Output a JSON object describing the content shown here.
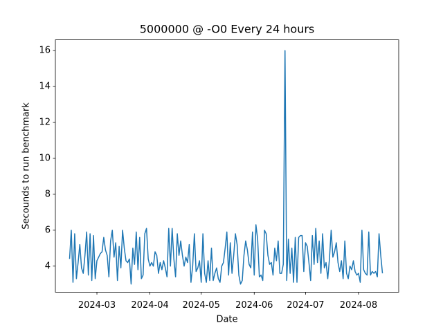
{
  "chart_data": {
    "type": "line",
    "title": "5000000 @ -O0 Every 24 hours",
    "x_label": "Date",
    "y_label": "Secounds to run benchmark",
    "x": [
      45,
      46,
      47,
      48,
      49,
      50,
      51,
      52,
      53,
      54,
      55,
      56,
      57,
      58,
      59,
      60,
      61,
      62,
      63,
      64,
      65,
      66,
      67,
      68,
      69,
      70,
      71,
      72,
      73,
      74,
      75,
      76,
      77,
      78,
      79,
      80,
      81,
      82,
      83,
      84,
      85,
      86,
      87,
      88,
      89,
      90,
      91,
      92,
      93,
      94,
      95,
      96,
      97,
      98,
      99,
      100,
      101,
      102,
      103,
      104,
      105,
      106,
      107,
      108,
      109,
      110,
      111,
      112,
      113,
      114,
      115,
      116,
      117,
      118,
      119,
      120,
      121,
      122,
      123,
      124,
      125,
      126,
      127,
      128,
      129,
      130,
      131,
      132,
      133,
      134,
      135,
      136,
      137,
      138,
      139,
      140,
      141,
      142,
      143,
      144,
      145,
      146,
      147,
      148,
      149,
      150,
      151,
      152,
      153,
      154,
      155,
      156,
      157,
      158,
      159,
      160,
      161,
      162,
      163,
      164,
      165,
      166,
      167,
      168,
      169,
      170,
      171,
      172,
      173,
      174,
      175,
      176,
      177,
      178,
      179,
      180,
      181,
      182,
      183,
      184,
      185,
      186,
      187,
      188,
      189,
      190,
      191,
      192,
      193,
      194,
      195,
      196,
      197,
      198,
      199,
      200,
      201,
      202,
      203,
      204,
      205,
      206,
      207,
      208,
      209,
      210,
      211,
      212,
      213,
      214,
      215,
      216,
      217,
      218,
      219,
      220,
      221,
      222,
      223,
      224,
      225,
      226,
      227,
      228
    ],
    "series": [
      {
        "color": "#1f77b4",
        "values": [
          4.4,
          6.0,
          3.1,
          5.8,
          3.3,
          4.2,
          5.2,
          3.9,
          3.6,
          4.6,
          5.9,
          3.5,
          5.8,
          3.2,
          5.7,
          3.3,
          4.3,
          4.5,
          4.7,
          4.8,
          5.6,
          4.9,
          4.6,
          3.4,
          5.4,
          6.0,
          4.5,
          5.3,
          3.2,
          5.1,
          3.9,
          6.0,
          5.0,
          4.3,
          4.2,
          4.4,
          3.0,
          5.0,
          4.1,
          5.9,
          3.8,
          5.6,
          3.3,
          3.5,
          5.8,
          6.1,
          4.4,
          4.0,
          4.2,
          4.0,
          4.8,
          4.6,
          3.6,
          4.2,
          3.8,
          4.3,
          3.9,
          3.4,
          6.1,
          4.0,
          6.1,
          4.4,
          3.4,
          5.8,
          4.6,
          5.4,
          4.6,
          4.0,
          4.5,
          4.2,
          5.2,
          3.1,
          4.0,
          5.8,
          3.7,
          3.9,
          4.3,
          3.1,
          5.8,
          3.6,
          3.1,
          4.3,
          3.2,
          5.0,
          3.2,
          3.6,
          3.9,
          3.3,
          3.1,
          4.0,
          4.2,
          5.0,
          5.9,
          3.5,
          5.3,
          3.6,
          4.6,
          5.8,
          5.2,
          3.5,
          3.0,
          3.2,
          4.6,
          5.4,
          4.9,
          4.1,
          3.9,
          5.9,
          3.5,
          6.3,
          5.5,
          3.4,
          3.5,
          3.2,
          6.0,
          5.8,
          4.6,
          4.1,
          4.2,
          3.5,
          5.0,
          4.3,
          5.4,
          3.6,
          3.6,
          4.1,
          16.0,
          3.2,
          5.5,
          3.6,
          5.0,
          3.1,
          5.6,
          3.1,
          5.6,
          5.7,
          5.7,
          3.7,
          5.3,
          5.1,
          4.2,
          3.2,
          5.7,
          4.1,
          6.1,
          4.2,
          5.4,
          3.6,
          5.8,
          3.9,
          4.2,
          3.3,
          4.4,
          6.0,
          4.5,
          4.8,
          5.3,
          4.2,
          3.7,
          4.3,
          3.3,
          5.4,
          3.6,
          3.3,
          4.0,
          3.8,
          4.3,
          3.7,
          3.5,
          3.6,
          3.1,
          6.0,
          3.8,
          3.6,
          3.5,
          5.9,
          3.5,
          3.7,
          3.6,
          3.7,
          3.4,
          5.8,
          4.6,
          3.6
        ]
      }
    ],
    "xlim": [
      36.7,
      237.5
    ],
    "xticks": [
      {
        "value": 61,
        "label": "2024-03"
      },
      {
        "value": 92,
        "label": "2024-04"
      },
      {
        "value": 122,
        "label": "2024-05"
      },
      {
        "value": 153,
        "label": "2024-06"
      },
      {
        "value": 183,
        "label": "2024-07"
      },
      {
        "value": 214,
        "label": "2024-08"
      }
    ],
    "ylim": [
      2.55,
      16.6
    ],
    "yticks": [
      4,
      6,
      8,
      10,
      12,
      14,
      16
    ],
    "grid": false
  }
}
